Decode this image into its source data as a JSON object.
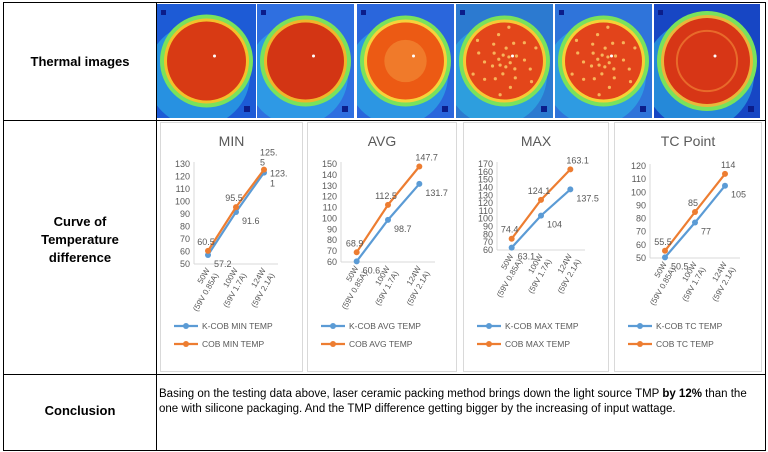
{
  "rows": {
    "thermal": "Thermal images",
    "curve": "Curve of Temperature difference",
    "conclusion": "Conclusion"
  },
  "thermal_images": [
    {
      "bg": "#1d5bd6",
      "disc": "#d83a14",
      "ring": "#f3c12a",
      "tex": "smooth"
    },
    {
      "bg": "#2f6fe0",
      "disc": "#d33514",
      "ring": "#f0b52a",
      "tex": "smooth"
    },
    {
      "bg": "#2a66dc",
      "disc": "#ec5a14",
      "ring": "#f7d23a",
      "tex": "blob"
    },
    {
      "bg": "#2c7ad0",
      "disc": "#e3461a",
      "ring": "#f7c935",
      "tex": "dots"
    },
    {
      "bg": "#2f74da",
      "disc": "#e2441b",
      "ring": "#f5d236",
      "tex": "dots"
    },
    {
      "bg": "#1746c4",
      "disc": "#d73616",
      "ring": "#eab63a",
      "tex": "ring"
    }
  ],
  "conclusion_text": {
    "before": "Basing on the testing data above, laser ceramic packing method brings down the light source TMP ",
    "bold": "by 12%",
    "after": " than the one with silicone packaging. And the TMP difference getting bigger by the increasing of input wattage."
  },
  "colors": {
    "kcob": "#5b9bd5",
    "cob": "#ed7d31",
    "axis": "#d9d9d9",
    "text": "#595959"
  },
  "chart_data": [
    {
      "type": "line",
      "title": "MIN",
      "categories": [
        "50W (59V 0.85A)",
        "100W (59V 1.7A)",
        "124W (59V 2.1A)"
      ],
      "ylim": [
        50,
        130
      ],
      "yticks": [
        50,
        60,
        70,
        80,
        90,
        100,
        110,
        120,
        130
      ],
      "series": [
        {
          "name": "K-COB MIN TEMP",
          "values": [
            57.2,
            91.6,
            123.1
          ],
          "labels": [
            "57.2",
            "91.6",
            "123.\n1"
          ]
        },
        {
          "name": "COB MIN TEMP",
          "values": [
            60.5,
            95.5,
            125.5
          ],
          "labels": [
            "60.5",
            "95.5",
            "125.\n5"
          ]
        }
      ]
    },
    {
      "type": "line",
      "title": "AVG",
      "categories": [
        "50W (59V 0.85A)",
        "100W (59V 1.7A)",
        "124W (59V 2.1A)"
      ],
      "ylim": [
        60,
        150
      ],
      "yticks": [
        60,
        70,
        80,
        90,
        100,
        110,
        120,
        130,
        140,
        150
      ],
      "series": [
        {
          "name": "K-COB AVG TEMP",
          "values": [
            60.6,
            98.7,
            131.7
          ],
          "labels": [
            "60.6",
            "98.7",
            "131.7"
          ]
        },
        {
          "name": "COB AVG TEMP",
          "values": [
            68.9,
            112.5,
            147.7
          ],
          "labels": [
            "68.9",
            "112.5",
            "147.7"
          ]
        }
      ]
    },
    {
      "type": "line",
      "title": "MAX",
      "categories": [
        "50W (59V 0.85A)",
        "100W (59V 1.7A)",
        "124W (59V 2.1A)"
      ],
      "ylim": [
        60,
        170
      ],
      "yticks": [
        60,
        70,
        80,
        90,
        100,
        110,
        120,
        130,
        140,
        150,
        160,
        170
      ],
      "series": [
        {
          "name": "K-COB MAX TEMP",
          "values": [
            63.1,
            104,
            137.5
          ],
          "labels": [
            "63.1",
            "104",
            "137.5"
          ]
        },
        {
          "name": "COB MAX TEMP",
          "values": [
            74.4,
            124.1,
            163.1
          ],
          "labels": [
            "74.4",
            "124.1",
            "163.1"
          ]
        }
      ]
    },
    {
      "type": "line",
      "title": "TC Point",
      "categories": [
        "50W (59V 0.85A)",
        "100W (59V 1.7A)",
        "124W (59V 2.1A)"
      ],
      "ylim": [
        50,
        120
      ],
      "yticks": [
        50,
        60,
        70,
        80,
        90,
        100,
        110,
        120
      ],
      "series": [
        {
          "name": "K-COB TC TEMP",
          "values": [
            50.5,
            77,
            105
          ],
          "labels": [
            "50.5",
            "77",
            "105"
          ]
        },
        {
          "name": "COB TC TEMP",
          "values": [
            55.5,
            85,
            114
          ],
          "labels": [
            "55.5",
            "85",
            "114"
          ]
        }
      ]
    }
  ]
}
